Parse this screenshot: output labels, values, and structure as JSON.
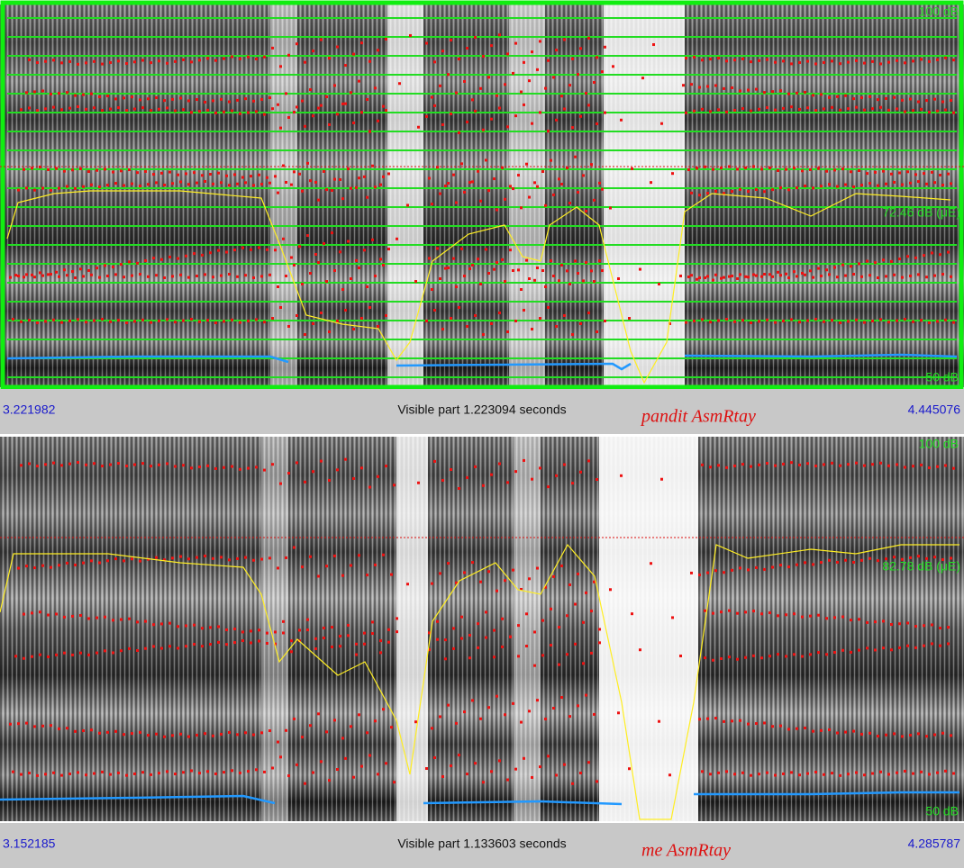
{
  "panels": [
    {
      "top_label": "100 dB",
      "mid_label": "72.46 dB (μE)",
      "bottom_label": "50 dB",
      "start_time": "3.221982",
      "visible_part": "Visible part 1.223094 seconds",
      "speaker": "pandit AsmRtay",
      "end_time": "4.445076"
    },
    {
      "top_label": "100 dB",
      "mid_label": "82.78 dB (μE)",
      "bottom_label": "50 dB",
      "start_time": "3.152185",
      "visible_part": "Visible part 1.133603 seconds",
      "speaker": "me AsmRtay",
      "end_time": "4.285787"
    }
  ]
}
